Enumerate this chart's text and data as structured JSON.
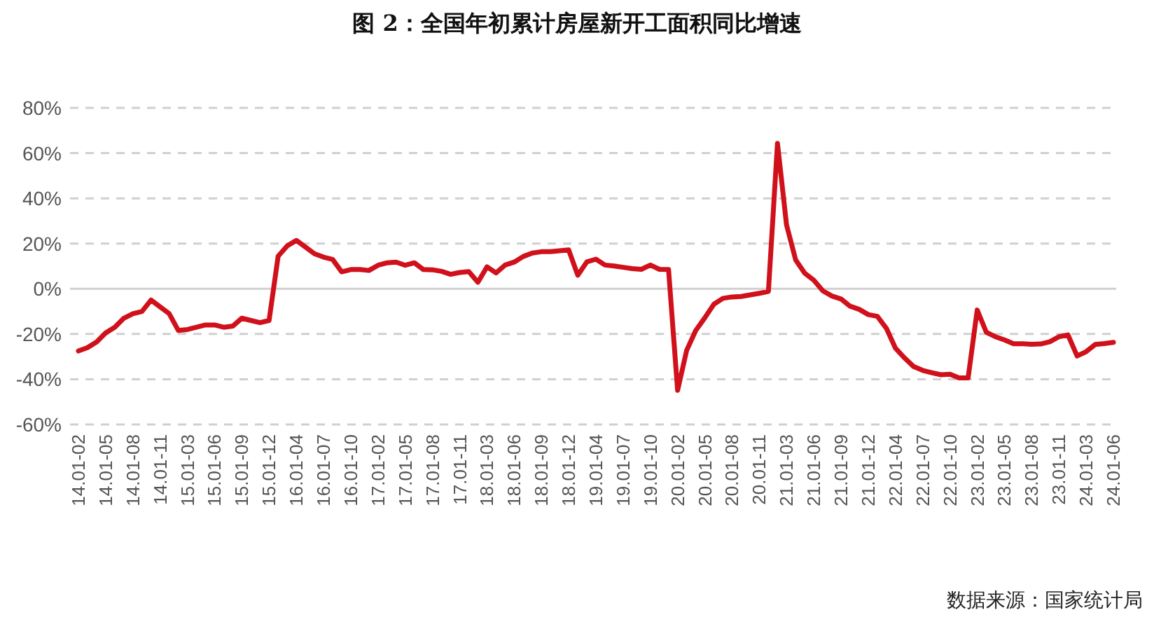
{
  "chart_data": {
    "type": "line",
    "title": "图 2：全国年初累计房屋新开工面积同比增速",
    "categories": [
      "14.01-02",
      null,
      null,
      "14.01-05",
      null,
      null,
      "14.01-08",
      null,
      null,
      "14.01-11",
      null,
      null,
      "15.01-03",
      null,
      null,
      "15.01-06",
      null,
      null,
      "15.01-09",
      null,
      null,
      "15.01-12",
      null,
      null,
      "16.01-04",
      null,
      null,
      "16.01-07",
      null,
      null,
      "16.01-10",
      null,
      null,
      "17.01-02",
      null,
      null,
      "17.01-05",
      null,
      null,
      "17.01-08",
      null,
      null,
      "17.01-11",
      null,
      null,
      "18.01-03",
      null,
      null,
      "18.01-06",
      null,
      null,
      "18.01-09",
      null,
      null,
      "18.01-12",
      null,
      null,
      "19.01-04",
      null,
      null,
      "19.01-07",
      null,
      null,
      "19.01-10",
      null,
      null,
      "20.01-02",
      null,
      null,
      "20.01-05",
      null,
      null,
      "20.01-08",
      null,
      null,
      "20.01-11",
      null,
      null,
      "21.01-03",
      null,
      null,
      "21.01-06",
      null,
      null,
      "21.01-09",
      null,
      null,
      "21.01-12",
      null,
      null,
      "22.01-04",
      null,
      null,
      "22.01-07",
      null,
      null,
      "22.01-10",
      null,
      null,
      "23.01-02",
      null,
      null,
      "23.01-05",
      null,
      null,
      "23.01-08",
      null,
      null,
      "23.01-11",
      null,
      null,
      "24.01-03",
      null,
      null,
      "24.01-06"
    ],
    "series": [
      {
        "color": "#d0111b",
        "values": [
          -27.5,
          -26,
          -23.5,
          -19.5,
          -17,
          -13,
          -11,
          -10,
          -5,
          -8,
          -11,
          -18.4,
          -18,
          -17,
          -16,
          -16,
          -17,
          -16.5,
          -13,
          -14,
          -15,
          -14,
          14.4,
          19,
          21.4,
          18.5,
          15.5,
          14,
          13,
          7.5,
          8.5,
          8.5,
          8.1,
          10.4,
          11.5,
          11.8,
          10.4,
          11.5,
          8.5,
          8.4,
          7.7,
          6.4,
          7.2,
          7.6,
          2.9,
          9.7,
          7,
          10.5,
          11.8,
          14.3,
          15.8,
          16.4,
          16.4,
          16.8,
          17.2,
          6,
          11.9,
          13.1,
          10.5,
          10.1,
          9.5,
          8.9,
          8.6,
          10.5,
          8.6,
          8.5,
          -44.9,
          -27.2,
          -18.4,
          -12.8,
          -6.8,
          -4.2,
          -3.6,
          -3.4,
          -2.7,
          -2,
          -1.2,
          64.3,
          28.2,
          12.8,
          6.9,
          3.8,
          -0.9,
          -3.2,
          -4.5,
          -7.7,
          -9.1,
          -11.4,
          -12.2,
          -17.5,
          -26.3,
          -30.6,
          -34.4,
          -36.1,
          -37.1,
          -38,
          -37.8,
          -39.4,
          -39.4,
          -9.4,
          -19.2,
          -21.2,
          -22.6,
          -24.3,
          -24.3,
          -24.5,
          -24.4,
          -23.4,
          -21.2,
          -20.4,
          -29.7,
          -27.8,
          -24.6,
          -24.2,
          -23.7
        ]
      }
    ],
    "ylim": [
      -60,
      80
    ],
    "yticks": [
      {
        "value": -60,
        "label": "-60%"
      },
      {
        "value": -40,
        "label": "-40%"
      },
      {
        "value": -20,
        "label": "-20%"
      },
      {
        "value": 0,
        "label": "0%"
      },
      {
        "value": 20,
        "label": "20%"
      },
      {
        "value": 40,
        "label": "40%"
      },
      {
        "value": 60,
        "label": "60%"
      },
      {
        "value": 80,
        "label": "80%"
      }
    ],
    "grid": "y",
    "marker": "none",
    "line_style": "solid",
    "annotations": [
      "数据来源：国家统计局"
    ]
  }
}
